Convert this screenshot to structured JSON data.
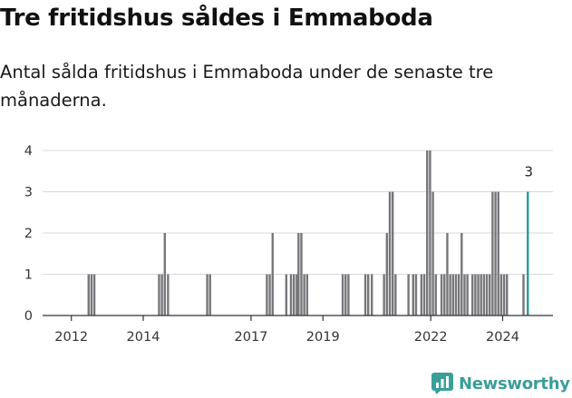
{
  "header": {
    "title": "Tre fritidshus såldes i Emmaboda",
    "subtitle": "Antal sålda fritidshus i Emmaboda under de senaste tre månaderna."
  },
  "brand": {
    "name": "Newsworthy",
    "icon": "newsworthy-logo-icon",
    "color": "#3a9e99"
  },
  "colors": {
    "bar": "#77767b",
    "highlight": "#2a9a95",
    "grid": "#d9d9d9",
    "axis": "#333333"
  },
  "chart_data": {
    "type": "bar",
    "ylim": [
      0,
      4
    ],
    "y_ticks": [
      0,
      1,
      2,
      3,
      4
    ],
    "x_ticks": [
      "2012",
      "2014",
      "2017",
      "2019",
      "2022",
      "2024"
    ],
    "x_tick_values": [
      2012.0,
      2014.0,
      2017.0,
      2019.0,
      2022.0,
      2024.0
    ],
    "xlim": [
      2011.2,
      2025.4
    ],
    "grid": true,
    "annotation": "3",
    "series": [
      {
        "values": [
          {
            "x": 2012.48,
            "y": 1
          },
          {
            "x": 2012.56,
            "y": 1
          },
          {
            "x": 2012.64,
            "y": 1
          },
          {
            "x": 2014.44,
            "y": 1
          },
          {
            "x": 2014.52,
            "y": 1
          },
          {
            "x": 2014.6,
            "y": 2
          },
          {
            "x": 2014.69,
            "y": 1
          },
          {
            "x": 2015.78,
            "y": 1
          },
          {
            "x": 2015.86,
            "y": 1
          },
          {
            "x": 2017.44,
            "y": 1
          },
          {
            "x": 2017.52,
            "y": 1
          },
          {
            "x": 2017.6,
            "y": 2
          },
          {
            "x": 2017.98,
            "y": 1
          },
          {
            "x": 2018.11,
            "y": 1
          },
          {
            "x": 2018.19,
            "y": 1
          },
          {
            "x": 2018.27,
            "y": 1
          },
          {
            "x": 2018.32,
            "y": 2
          },
          {
            "x": 2018.4,
            "y": 2
          },
          {
            "x": 2018.48,
            "y": 1
          },
          {
            "x": 2018.56,
            "y": 1
          },
          {
            "x": 2019.55,
            "y": 1
          },
          {
            "x": 2019.63,
            "y": 1
          },
          {
            "x": 2019.71,
            "y": 1
          },
          {
            "x": 2020.18,
            "y": 1
          },
          {
            "x": 2020.26,
            "y": 1
          },
          {
            "x": 2020.36,
            "y": 1
          },
          {
            "x": 2020.7,
            "y": 1
          },
          {
            "x": 2020.78,
            "y": 2
          },
          {
            "x": 2020.86,
            "y": 3
          },
          {
            "x": 2020.94,
            "y": 3
          },
          {
            "x": 2021.02,
            "y": 1
          },
          {
            "x": 2021.38,
            "y": 1
          },
          {
            "x": 2021.51,
            "y": 1
          },
          {
            "x": 2021.59,
            "y": 1
          },
          {
            "x": 2021.74,
            "y": 1
          },
          {
            "x": 2021.82,
            "y": 1
          },
          {
            "x": 2021.9,
            "y": 4
          },
          {
            "x": 2021.98,
            "y": 4
          },
          {
            "x": 2022.06,
            "y": 3
          },
          {
            "x": 2022.14,
            "y": 1
          },
          {
            "x": 2022.3,
            "y": 1
          },
          {
            "x": 2022.38,
            "y": 1
          },
          {
            "x": 2022.46,
            "y": 2
          },
          {
            "x": 2022.54,
            "y": 1
          },
          {
            "x": 2022.62,
            "y": 1
          },
          {
            "x": 2022.7,
            "y": 1
          },
          {
            "x": 2022.78,
            "y": 1
          },
          {
            "x": 2022.86,
            "y": 2
          },
          {
            "x": 2022.94,
            "y": 1
          },
          {
            "x": 2023.02,
            "y": 1
          },
          {
            "x": 2023.16,
            "y": 1
          },
          {
            "x": 2023.24,
            "y": 1
          },
          {
            "x": 2023.32,
            "y": 1
          },
          {
            "x": 2023.4,
            "y": 1
          },
          {
            "x": 2023.48,
            "y": 1
          },
          {
            "x": 2023.56,
            "y": 1
          },
          {
            "x": 2023.64,
            "y": 1
          },
          {
            "x": 2023.72,
            "y": 3
          },
          {
            "x": 2023.8,
            "y": 3
          },
          {
            "x": 2023.88,
            "y": 3
          },
          {
            "x": 2023.96,
            "y": 1
          },
          {
            "x": 2024.04,
            "y": 1
          },
          {
            "x": 2024.12,
            "y": 1
          },
          {
            "x": 2024.58,
            "y": 1
          },
          {
            "x": 2024.7,
            "y": 3
          }
        ]
      }
    ],
    "highlight_index": 64
  }
}
